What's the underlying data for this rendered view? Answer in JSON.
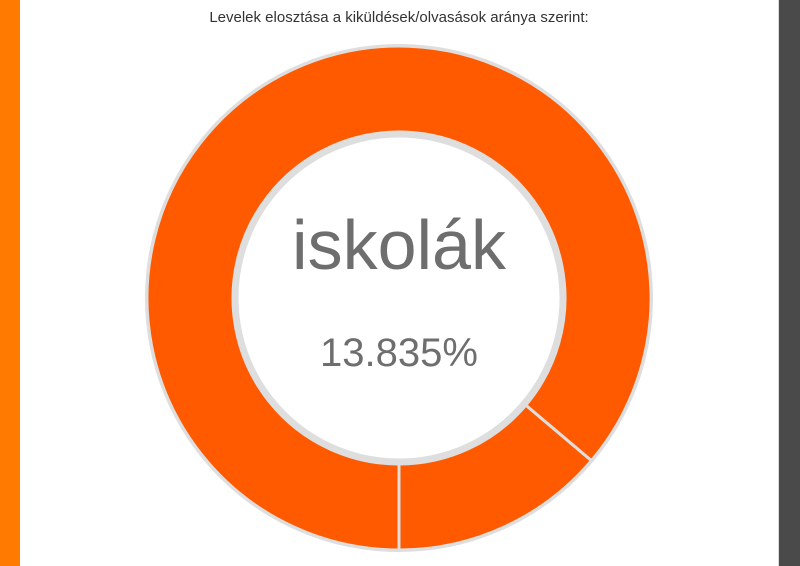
{
  "colors": {
    "left_accent": "#ff7a00",
    "right_bar": "#4a4a4a",
    "series_primary": "#ff5a00",
    "series_secondary": "#ff5a00",
    "ring_border": "#dedede"
  },
  "chart_data": {
    "type": "pie",
    "title": "Levelek elosztása a kiküldések/olvasások aránya szerint:",
    "hole": true,
    "center_label": "iskolák",
    "center_value": "13.835%",
    "slices": [
      {
        "label": "iskolák",
        "value": 13.835
      },
      {
        "label": "",
        "value": 86.165
      }
    ]
  }
}
